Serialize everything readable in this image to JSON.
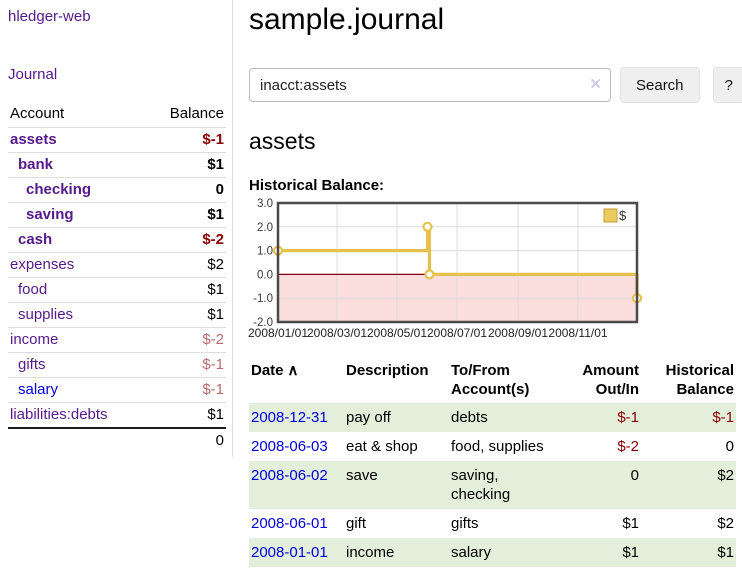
{
  "app": {
    "brand": "hledger-web"
  },
  "colors": {
    "link_purple": "#551A8B",
    "link_blue": "#0000E0",
    "negative_strong": "#8B0000",
    "negative_faded": "#B96C6C",
    "row_shade_green": "#E3EFDA",
    "chart_line": "#E7C14E",
    "chart_negative_region": "#FBDEDE",
    "chart_zero_line": "#8B0000"
  },
  "sidebar": {
    "nav": [
      {
        "label": "Journal"
      }
    ],
    "accounts_table": {
      "headers": {
        "account": "Account",
        "balance": "Balance"
      },
      "rows": [
        {
          "account": "assets",
          "balance": "$-1",
          "indent": 1,
          "bold": true,
          "balance_class": "neg",
          "link_color": "purple"
        },
        {
          "account": "bank",
          "balance": "$1",
          "indent": 2,
          "bold": true,
          "balance_class": "",
          "link_color": "purple"
        },
        {
          "account": "checking",
          "balance": "0",
          "indent": 3,
          "bold": true,
          "balance_class": "",
          "link_color": "purple"
        },
        {
          "account": "saving",
          "balance": "$1",
          "indent": 3,
          "bold": true,
          "balance_class": "",
          "link_color": "purple"
        },
        {
          "account": "cash",
          "balance": "$-2",
          "indent": 2,
          "bold": true,
          "balance_class": "neg",
          "link_color": "purple"
        },
        {
          "account": "expenses",
          "balance": "$2",
          "indent": 1,
          "bold": false,
          "balance_class": "",
          "link_color": "purple"
        },
        {
          "account": "food",
          "balance": "$1",
          "indent": 2,
          "bold": false,
          "balance_class": "",
          "link_color": "purple"
        },
        {
          "account": "supplies",
          "balance": "$1",
          "indent": 2,
          "bold": false,
          "balance_class": "",
          "link_color": "purple"
        },
        {
          "account": "income",
          "balance": "$-2",
          "indent": 1,
          "bold": false,
          "balance_class": "negfade",
          "link_color": "purple"
        },
        {
          "account": "gifts",
          "balance": "$-1",
          "indent": 2,
          "bold": false,
          "balance_class": "negfade",
          "link_color": "purple"
        },
        {
          "account": "salary",
          "balance": "$-1",
          "indent": 2,
          "bold": false,
          "balance_class": "negfade",
          "link_color": "blue"
        },
        {
          "account": "liabilities:debts",
          "balance": "$1",
          "indent": 1,
          "bold": false,
          "balance_class": "",
          "link_color": "purple"
        }
      ],
      "total": "0"
    }
  },
  "main": {
    "title": "sample.journal",
    "search": {
      "value": "inacct:assets",
      "clear_icon": "✕",
      "button_label": "Search",
      "help_label": "?"
    },
    "account_heading": "assets",
    "chart_heading": "Historical Balance:",
    "register_table": {
      "headers": {
        "date": "Date",
        "sort_icon": "∧",
        "description": "Description",
        "accounts": "To/From Account(s)",
        "amount": "Amount Out/In",
        "balance": "Historical Balance"
      },
      "rows": [
        {
          "date": "2008-12-31",
          "description": "pay off",
          "accounts": "debts",
          "amount": "$-1",
          "balance": "$-1",
          "amount_neg": true,
          "balance_neg": true,
          "shaded": true
        },
        {
          "date": "2008-06-03",
          "description": "eat & shop",
          "accounts": "food, supplies",
          "amount": "$-2",
          "balance": "0",
          "amount_neg": true,
          "balance_neg": false,
          "shaded": false
        },
        {
          "date": "2008-06-02",
          "description": "save",
          "accounts": "saving, checking",
          "amount": "0",
          "balance": "$2",
          "amount_neg": false,
          "balance_neg": false,
          "shaded": true
        },
        {
          "date": "2008-06-01",
          "description": "gift",
          "accounts": "gifts",
          "amount": "$1",
          "balance": "$2",
          "amount_neg": false,
          "balance_neg": false,
          "shaded": false
        },
        {
          "date": "2008-01-01",
          "description": "income",
          "accounts": "salary",
          "amount": "$1",
          "balance": "$1",
          "amount_neg": false,
          "balance_neg": false,
          "shaded": true
        }
      ]
    }
  },
  "chart_data": {
    "type": "line",
    "step": true,
    "title": "Historical Balance:",
    "x_range": [
      "2008-01-01",
      "2008-12-31"
    ],
    "ylim": [
      -2,
      3
    ],
    "grid": true,
    "y_ticks": [
      {
        "value": 3,
        "label": "3.0"
      },
      {
        "value": 2,
        "label": "2.0"
      },
      {
        "value": 1,
        "label": "1.0"
      },
      {
        "value": 0,
        "label": "0.0"
      },
      {
        "value": -1,
        "label": "-1.0"
      },
      {
        "value": -2,
        "label": "-2.0"
      }
    ],
    "x_ticks": [
      {
        "date": "2008-01-01",
        "label": "2008/01/01"
      },
      {
        "date": "2008-03-01",
        "label": "2008/03/01"
      },
      {
        "date": "2008-05-01",
        "label": "2008/05/01"
      },
      {
        "date": "2008-07-01",
        "label": "2008/07/01"
      },
      {
        "date": "2008-09-01",
        "label": "2008/09/01"
      },
      {
        "date": "2008-11-01",
        "label": "2008/11/01"
      }
    ],
    "series": [
      {
        "name": "$",
        "color": "#E7C14E",
        "points": [
          {
            "date": "2008-01-01",
            "value": 1
          },
          {
            "date": "2008-06-01",
            "value": 2
          },
          {
            "date": "2008-06-03",
            "value": 0
          },
          {
            "date": "2008-12-31",
            "value": -1
          }
        ]
      }
    ],
    "legend": {
      "label": "$",
      "position": "top-right"
    },
    "negative_region_color": "#FBDEDE",
    "zero_line_color": "#8B0000"
  }
}
